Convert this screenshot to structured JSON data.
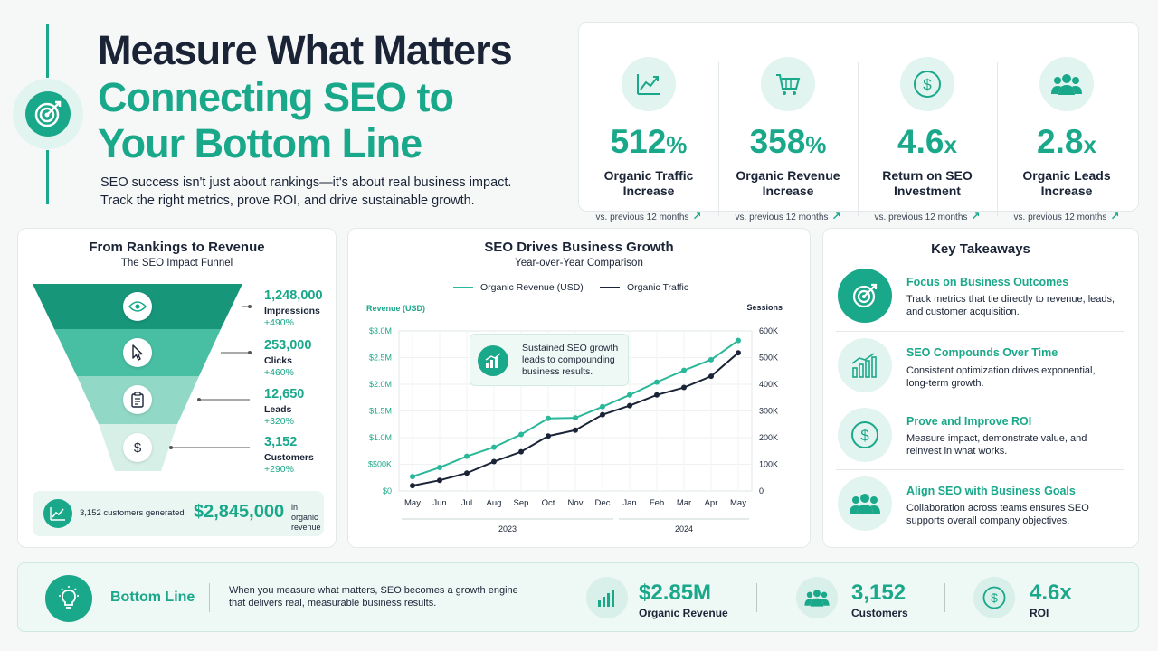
{
  "header": {
    "title": "Measure What Matters",
    "subtitle_line1": "Connecting SEO to",
    "subtitle_line2": "Your Bottom Line",
    "description": "SEO success isn't just about rankings—it's about real business impact. Track the right metrics, prove ROI, and drive sustainable growth.",
    "icon": "target-icon"
  },
  "stats": [
    {
      "value": "512",
      "unit": "%",
      "label_line1": "Organic Traffic",
      "label_line2": "Increase",
      "note": "vs. previous 12 months",
      "icon": "trend-up-icon"
    },
    {
      "value": "358",
      "unit": "%",
      "label_line1": "Organic Revenue",
      "label_line2": "Increase",
      "note": "vs. previous 12 months",
      "icon": "cart-icon"
    },
    {
      "value": "4.6",
      "unit": "x",
      "label_line1": "Return on SEO",
      "label_line2": "Investment",
      "note": "vs. previous 12 months",
      "icon": "dollar-icon"
    },
    {
      "value": "2.8",
      "unit": "x",
      "label_line1": "Organic Leads",
      "label_line2": "Increase",
      "note": "vs. previous 12 months",
      "icon": "people-icon"
    }
  ],
  "funnel": {
    "title": "From Rankings to Revenue",
    "subtitle": "The SEO Impact Funnel",
    "stages": [
      {
        "value": "1,248,000",
        "label": "Impressions",
        "change": "+490%",
        "icon": "eye-icon"
      },
      {
        "value": "253,000",
        "label": "Clicks",
        "change": "+460%",
        "icon": "cursor-icon"
      },
      {
        "value": "12,650",
        "label": "Leads",
        "change": "+320%",
        "icon": "clipboard-icon"
      },
      {
        "value": "3,152",
        "label": "Customers",
        "change": "+290%",
        "icon": "dollar-icon"
      }
    ],
    "total_left": "3,152 customers generated",
    "total_value": "$2,845,000",
    "total_right_line1": "in organic",
    "total_right_line2": "revenue"
  },
  "chart_data": {
    "type": "line",
    "title": "SEO Drives Business Growth",
    "subtitle": "Year-over-Year Comparison",
    "x": [
      "May",
      "Jun",
      "Jul",
      "Aug",
      "Sep",
      "Oct",
      "Nov",
      "Dec",
      "Jan",
      "Feb",
      "Mar",
      "Apr",
      "May"
    ],
    "x_groups": [
      {
        "label": "2023",
        "from": 0,
        "to": 7
      },
      {
        "label": "2024",
        "from": 8,
        "to": 12
      }
    ],
    "series": [
      {
        "name": "Organic Revenue (USD)",
        "axis": "left",
        "color": "#2bb79a",
        "values": [
          270000,
          440000,
          650000,
          820000,
          1060000,
          1360000,
          1370000,
          1580000,
          1800000,
          2040000,
          2260000,
          2460000,
          2820000
        ]
      },
      {
        "name": "Organic Traffic",
        "axis": "right",
        "color": "#1a2436",
        "values": [
          20000,
          40000,
          67000,
          110000,
          147000,
          206000,
          228000,
          286000,
          320000,
          360000,
          388000,
          430000,
          518000
        ]
      }
    ],
    "ylabel": "Revenue (USD)",
    "ylabel_right": "Sessions",
    "ylim": [
      0,
      3000000
    ],
    "ylim_right": [
      0,
      600000
    ],
    "yticks": [
      "$0",
      "$500K",
      "$1.0M",
      "$1.5M",
      "$2.0M",
      "$2.5M",
      "$3.0M"
    ],
    "yticks_right": [
      "0",
      "100K",
      "200K",
      "300K",
      "400K",
      "500K",
      "600K"
    ],
    "grid": true,
    "legend": "top-center",
    "annotation": "Sustained SEO growth leads to compounding business results."
  },
  "takeaways": {
    "title": "Key Takeaways",
    "items": [
      {
        "title": "Focus on Business Outcomes",
        "text": "Track metrics that tie directly to revenue, leads, and customer acquisition.",
        "icon": "target-icon"
      },
      {
        "title": "SEO Compounds Over Time",
        "text": "Consistent optimization drives exponential, long-term growth.",
        "icon": "bar-growth-icon"
      },
      {
        "title": "Prove and Improve ROI",
        "text": "Measure impact, demonstrate value, and reinvest in what works.",
        "icon": "dollar-icon"
      },
      {
        "title": "Align SEO with Business Goals",
        "text": "Collaboration across teams ensures SEO supports overall company objectives.",
        "icon": "people-icon"
      }
    ]
  },
  "bottom": {
    "title": "Bottom Line",
    "text": "When you measure what matters, SEO becomes a growth engine that delivers real, measurable business results.",
    "metrics": [
      {
        "value": "$2.85M",
        "label": "Organic Revenue",
        "icon": "bar-chart-icon"
      },
      {
        "value": "3,152",
        "label": "Customers",
        "icon": "people-icon"
      },
      {
        "value": "4.6x",
        "label": "ROI",
        "icon": "dollar-icon"
      }
    ]
  },
  "colors": {
    "accent": "#1aa88a",
    "dark": "#1a2436",
    "funnel": [
      "#17967a",
      "#48bea3",
      "#92d8c6",
      "#d6f0e8"
    ]
  }
}
